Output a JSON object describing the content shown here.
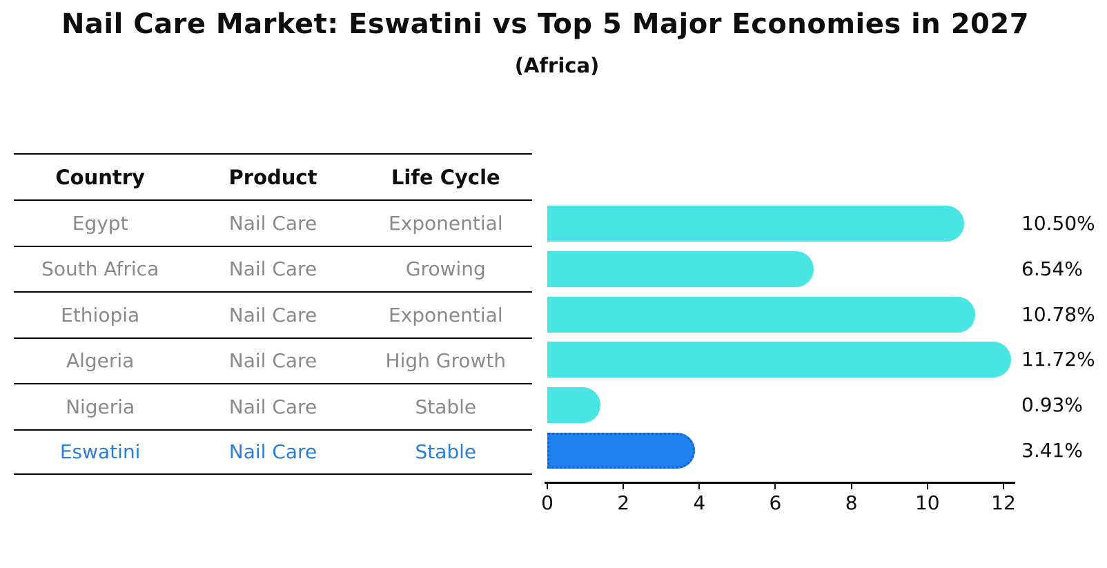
{
  "title": "Nail Care Market: Eswatini vs Top 5 Major Economies in 2027",
  "subtitle": "(Africa)",
  "table": {
    "headers": [
      "Country",
      "Product",
      "Life Cycle"
    ],
    "rows": [
      [
        "Egypt",
        "Nail Care",
        "Exponential"
      ],
      [
        "South Africa",
        "Nail Care",
        "Growing"
      ],
      [
        "Ethiopia",
        "Nail Care",
        "Exponential"
      ],
      [
        "Algeria",
        "Nail Care",
        "High Growth"
      ],
      [
        "Nigeria",
        "Nail Care",
        "Stable"
      ],
      [
        "Eswatini",
        "Nail Care",
        "Stable"
      ]
    ],
    "highlight_row_index": 5
  },
  "chart_data": {
    "type": "bar",
    "orientation": "horizontal",
    "title": "Nail Care Market: Eswatini vs Top 5 Major Economies in 2027",
    "subtitle": "(Africa)",
    "categories": [
      "Egypt",
      "South Africa",
      "Ethiopia",
      "Algeria",
      "Nigeria",
      "Eswatini"
    ],
    "values": [
      10.5,
      6.54,
      10.78,
      11.72,
      0.93,
      3.41
    ],
    "value_labels": [
      "10.50%",
      "6.54%",
      "10.78%",
      "11.72%",
      "0.93%",
      "3.41%"
    ],
    "x_ticks": [
      "0",
      "2",
      "4",
      "6",
      "8",
      "10",
      "12"
    ],
    "xlim": [
      0,
      12
    ],
    "grid": false,
    "legend": false,
    "highlight_index": 5,
    "colors": {
      "bar": "#48E5E3",
      "highlight_bar": "#1E82F0",
      "highlight_border": "#0F5FD7",
      "highlight_text": "#2B7FD9",
      "table_text": "#8A8A8A",
      "header_text": "#0E0E0E",
      "axis": "#000000"
    }
  }
}
